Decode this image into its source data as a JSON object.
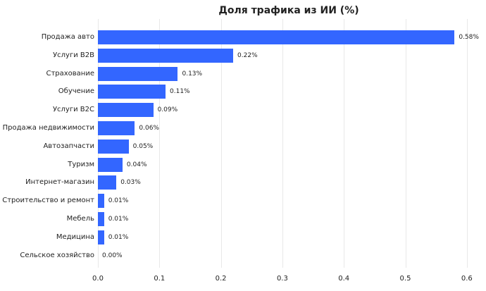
{
  "chart_data": {
    "type": "bar",
    "orientation": "horizontal",
    "title": "Доля трафика из ИИ (%)",
    "xlabel": "",
    "ylabel": "",
    "xlim": [
      0,
      0.6
    ],
    "grid": true,
    "color": "#3366ff",
    "categories": [
      "Продажа авто",
      "Услуги B2B",
      "Страхование",
      "Обучение",
      "Услуги B2C",
      "Продажа недвижимости",
      "Автозапчасти",
      "Туризм",
      "Интернет-магазин",
      "Строительство и ремонт",
      "Мебель",
      "Медицина",
      "Сельское хозяйство"
    ],
    "values": [
      0.58,
      0.22,
      0.13,
      0.11,
      0.09,
      0.06,
      0.05,
      0.04,
      0.03,
      0.01,
      0.01,
      0.01,
      0.0
    ],
    "labels": [
      "0.58%",
      "0.22%",
      "0.13%",
      "0.11%",
      "0.09%",
      "0.06%",
      "0.05%",
      "0.04%",
      "0.03%",
      "0.01%",
      "0.01%",
      "0.01%",
      "0.00%"
    ],
    "xticks": [
      "0.0",
      "0.1",
      "0.2",
      "0.3",
      "0.4",
      "0.5",
      "0.6"
    ]
  }
}
